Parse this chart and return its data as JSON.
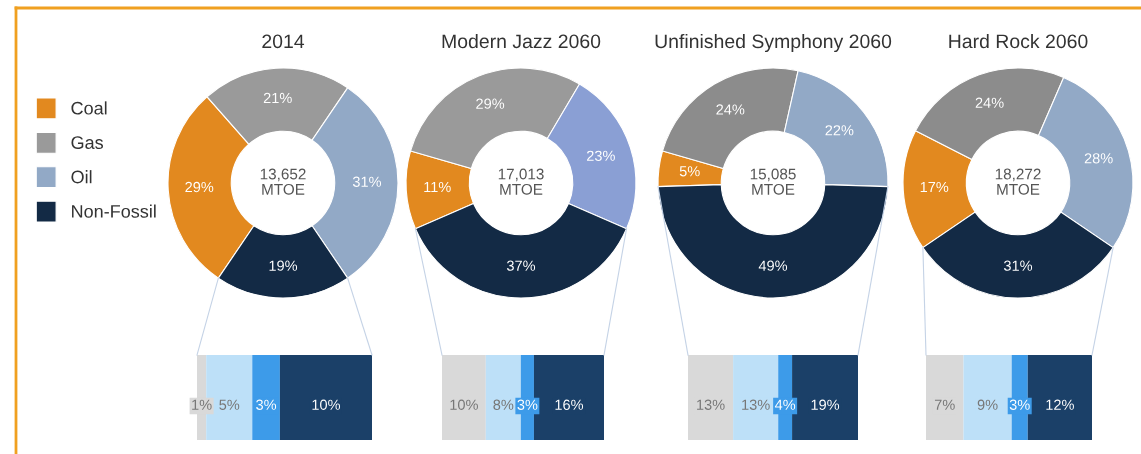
{
  "chart_data": [
    {
      "type": "donut",
      "title": "2014",
      "categories": [
        "Coal",
        "Gas",
        "Oil",
        "Non-Fossil"
      ],
      "values": [
        29,
        21,
        31,
        19
      ],
      "value_labels": [
        "29%",
        "21%",
        "31%",
        "19%"
      ],
      "colors": [
        "#e2891f",
        "#9a9a9a",
        "#92a9c6",
        "#132a45"
      ],
      "annotations": [
        "13,652\nMTOE"
      ],
      "legend": "left"
    },
    {
      "type": "donut",
      "title": "Modern Jazz 2060",
      "values": [
        11,
        29,
        23,
        37
      ],
      "value_labels": [
        "11%",
        "29%",
        "23%",
        "37%"
      ],
      "colors": [
        "#e2891f",
        "#9a9a9a",
        "#8a9fd4",
        "#132a45"
      ],
      "annotations": [
        "17,013\nMTOE"
      ]
    },
    {
      "type": "donut",
      "title": "Unfinished Symphony 2060",
      "values": [
        5,
        24,
        22,
        49
      ],
      "value_labels": [
        "5%",
        "24%",
        "22%",
        "49%"
      ],
      "colors": [
        "#e2891f",
        "#8c8c8c",
        "#92a9c6",
        "#132a45"
      ],
      "annotations": [
        "15,085\nMTOE"
      ]
    },
    {
      "type": "donut",
      "title": "Hard Rock 2060",
      "values": [
        17,
        24,
        28,
        31
      ],
      "value_labels": [
        "17%",
        "24%",
        "28%",
        "31%"
      ],
      "colors": [
        "#e2891f",
        "#8c8c8c",
        "#92a9c6",
        "#132a45"
      ],
      "annotations": [
        "18,272\nMTOE"
      ]
    },
    {
      "type": "bar",
      "orientation": "horizontal",
      "stacked": true,
      "categories": [
        null
      ],
      "series": [
        {
          "color": "#d9d9d9",
          "values": [
            1
          ],
          "value_labels": [
            "1%"
          ]
        },
        {
          "color": "#bde0f8",
          "values": [
            5
          ],
          "value_labels": [
            "5%"
          ]
        },
        {
          "color": "#3d9be9",
          "values": [
            3
          ],
          "value_labels": [
            "3%"
          ]
        },
        {
          "color": "#1b4068",
          "values": [
            10
          ],
          "value_labels": [
            "10%"
          ]
        }
      ]
    },
    {
      "type": "bar",
      "orientation": "horizontal",
      "stacked": true,
      "categories": [
        null
      ],
      "series": [
        {
          "color": "#d9d9d9",
          "values": [
            10
          ],
          "value_labels": [
            "10%"
          ]
        },
        {
          "color": "#bde0f8",
          "values": [
            8
          ],
          "value_labels": [
            "8%"
          ]
        },
        {
          "color": "#3d9be9",
          "values": [
            3
          ],
          "value_labels": [
            "3%"
          ]
        },
        {
          "color": "#1b4068",
          "values": [
            16
          ],
          "value_labels": [
            "16%"
          ]
        }
      ]
    },
    {
      "type": "bar",
      "orientation": "horizontal",
      "stacked": true,
      "categories": [
        null
      ],
      "series": [
        {
          "color": "#d9d9d9",
          "values": [
            13
          ],
          "value_labels": [
            "13%"
          ]
        },
        {
          "color": "#bde0f8",
          "values": [
            13
          ],
          "value_labels": [
            "13%"
          ]
        },
        {
          "color": "#3d9be9",
          "values": [
            4
          ],
          "value_labels": [
            "4%"
          ]
        },
        {
          "color": "#1b4068",
          "values": [
            19
          ],
          "value_labels": [
            "19%"
          ]
        }
      ]
    },
    {
      "type": "bar",
      "orientation": "horizontal",
      "stacked": true,
      "categories": [
        null
      ],
      "series": [
        {
          "color": "#d9d9d9",
          "values": [
            7
          ],
          "value_labels": [
            "7%"
          ]
        },
        {
          "color": "#bde0f8",
          "values": [
            9
          ],
          "value_labels": [
            "9%"
          ]
        },
        {
          "color": "#3d9be9",
          "values": [
            3
          ],
          "value_labels": [
            "3%"
          ]
        },
        {
          "color": "#1b4068",
          "values": [
            12
          ],
          "value_labels": [
            "12%"
          ]
        }
      ]
    }
  ]
}
